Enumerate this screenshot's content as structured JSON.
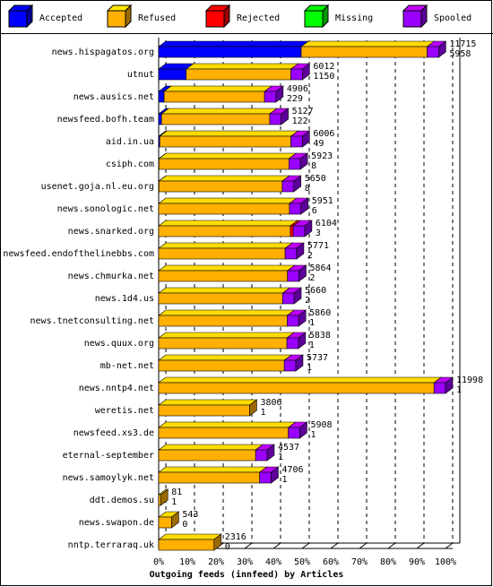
{
  "chart_data": {
    "type": "bar3d",
    "title": "Outgoing feeds (innfeed) by Articles",
    "categories": [
      "news.hispagatos.org",
      "utnut",
      "news.ausics.net",
      "newsfeed.bofh.team",
      "aid.in.ua",
      "csiph.com",
      "usenet.goja.nl.eu.org",
      "news.sonologic.net",
      "news.snarked.org",
      "newsfeed.endofthelinebbs.com",
      "news.chmurka.net",
      "news.1d4.us",
      "news.tnetconsulting.net",
      "news.quux.org",
      "mb-net.net",
      "news.nntp4.net",
      "weretis.net",
      "newsfeed.xs3.de",
      "eternal-september",
      "news.samoylyk.net",
      "ddt.demos.su",
      "news.swapon.de",
      "nntp.terraraq.uk"
    ],
    "offered": [
      11715,
      6012,
      4906,
      5127,
      6006,
      5923,
      5650,
      5951,
      6104,
      5771,
      5864,
      5660,
      5860,
      5838,
      5737,
      11998,
      3806,
      5908,
      4537,
      4706,
      81,
      543,
      2316
    ],
    "accepted": [
      5958,
      1150,
      229,
      122,
      49,
      8,
      8,
      6,
      3,
      2,
      2,
      2,
      1,
      1,
      1,
      1,
      1,
      1,
      1,
      1,
      1,
      0,
      0
    ],
    "series": [
      {
        "name": "Accepted",
        "color": "#0000ff",
        "values": [
          49.7,
          9.6,
          1.9,
          1.0,
          0.4,
          0.1,
          0.1,
          0,
          0,
          0,
          0,
          0,
          0,
          0,
          0,
          0,
          0,
          0,
          0,
          0,
          0,
          0,
          0
        ]
      },
      {
        "name": "Refused",
        "color": "#ffb000",
        "values": [
          43.9,
          36.5,
          35.0,
          37.7,
          45.7,
          45.3,
          43.0,
          45.6,
          45.9,
          44.1,
          44.9,
          43.2,
          44.8,
          44.7,
          43.8,
          96,
          31.7,
          45.2,
          33.8,
          35.2,
          0.7,
          4.5,
          19.3
        ]
      },
      {
        "name": "Rejected",
        "color": "#ff0000",
        "values": [
          0,
          0,
          0,
          0,
          0,
          0,
          0,
          0,
          1,
          0,
          0,
          0,
          0,
          0,
          0,
          0,
          0,
          0,
          0,
          0,
          0,
          0,
          0
        ]
      },
      {
        "name": "Missing",
        "color": "#00ff00",
        "values": [
          0,
          0,
          0,
          0,
          0,
          0,
          0,
          0,
          0,
          0,
          0,
          0,
          0,
          0,
          0,
          0,
          0,
          0,
          0,
          0,
          0,
          0,
          0
        ]
      },
      {
        "name": "Spooled",
        "color": "#9900ff",
        "values": [
          4,
          4,
          4,
          4,
          4,
          4,
          4,
          4,
          4,
          4,
          4,
          4,
          4,
          4,
          4,
          4,
          0,
          4,
          4,
          4,
          0,
          0,
          0
        ]
      }
    ],
    "xlim": [
      0,
      100
    ],
    "xticks": [
      {
        "value": 0,
        "label": "0%"
      },
      {
        "value": 10,
        "label": "10%"
      },
      {
        "value": 20,
        "label": "20%"
      },
      {
        "value": 30,
        "label": "30%"
      },
      {
        "value": 40,
        "label": "40%"
      },
      {
        "value": 50,
        "label": "50%"
      },
      {
        "value": 60,
        "label": "60%"
      },
      {
        "value": 70,
        "label": "70%"
      },
      {
        "value": 80,
        "label": "80%"
      },
      {
        "value": 90,
        "label": "90%"
      },
      {
        "value": 100,
        "label": "100%"
      }
    ],
    "grid": true
  }
}
